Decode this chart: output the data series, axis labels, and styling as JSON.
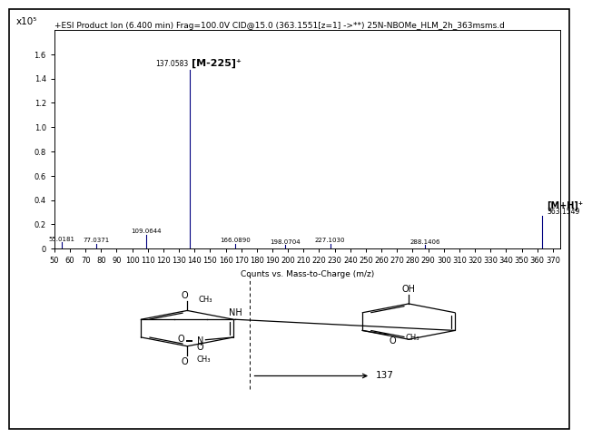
{
  "title": "+ESI Product Ion (6.400 min) Frag=100.0V CID@15.0 (363.1551[z=1] ->**) 25N-NBOMe_HLM_2h_363msms.d",
  "xlabel": "Counts vs. Mass-to-Charge (m/z)",
  "ylabel": "x10⁵",
  "xlim": [
    50,
    375
  ],
  "ylim": [
    0,
    1.8
  ],
  "yticks": [
    0,
    0.2,
    0.4,
    0.6,
    0.8,
    1.0,
    1.2,
    1.4,
    1.6
  ],
  "xticks": [
    50,
    60,
    70,
    80,
    90,
    100,
    110,
    120,
    130,
    140,
    150,
    160,
    170,
    180,
    190,
    200,
    210,
    220,
    230,
    240,
    250,
    260,
    270,
    280,
    290,
    300,
    310,
    320,
    330,
    340,
    350,
    360,
    370
  ],
  "peaks": [
    {
      "mz": 55.0181,
      "intensity": 0.05,
      "label": "55.0181"
    },
    {
      "mz": 77.0371,
      "intensity": 0.04,
      "label": "77.0371"
    },
    {
      "mz": 109.0644,
      "intensity": 0.115,
      "label": "109.0644"
    },
    {
      "mz": 137.0583,
      "intensity": 1.47,
      "label": "137.0583",
      "bold_label": "[M-225]⁺"
    },
    {
      "mz": 166.089,
      "intensity": 0.04,
      "label": "166.0890"
    },
    {
      "mz": 198.0704,
      "intensity": 0.03,
      "label": "198.0704"
    },
    {
      "mz": 227.103,
      "intensity": 0.04,
      "label": "227.1030"
    },
    {
      "mz": 288.1406,
      "intensity": 0.028,
      "label": "288.1406"
    },
    {
      "mz": 363.1549,
      "intensity": 0.27,
      "label": "363.1549",
      "bold_label": "[M+H]⁺"
    }
  ],
  "bar_color": "#000080",
  "background_color": "#ffffff",
  "title_fontsize": 6.5,
  "label_fontsize": 6.5,
  "tick_fontsize": 6.0
}
